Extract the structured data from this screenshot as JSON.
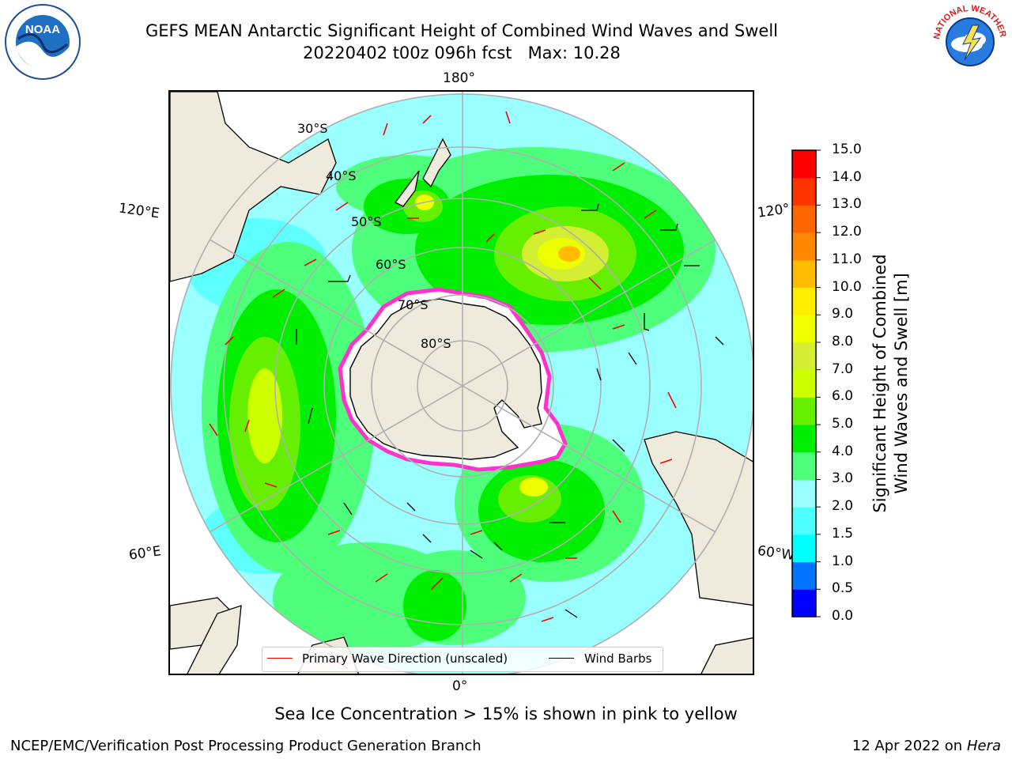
{
  "title": {
    "line1": "GEFS MEAN Antarctic Significant Height of Combined Wind Waves and Swell",
    "line2": "20220402 t00z 096h fcst   Max: 10.28"
  },
  "logos": {
    "noaa_text": "NOAA",
    "nws_text": "NATIONAL WEATHER SERVICE"
  },
  "map": {
    "projection": "south-polar stereographic",
    "longitude_labels": {
      "top": "180°",
      "bottom": "0°",
      "upper_left": "120°E",
      "lower_left": "60°E",
      "upper_right": "120°",
      "lower_right": "60°W"
    },
    "latitude_labels": [
      "30°S",
      "40°S",
      "50°S",
      "60°S",
      "70°S",
      "80°S"
    ],
    "max_value_m": 10.28,
    "colors": {
      "land": "#eeebdc",
      "ice_free_pack": "#ffffff",
      "sea_ice_edge": "#ff33cc",
      "primary_wave_arrow": "#ff0000",
      "wind_barb": "#000000",
      "grid": "#b0b0b0"
    }
  },
  "legend": {
    "wave_direction": "Primary Wave Direction (unscaled)",
    "wind_barbs": "Wind Barbs"
  },
  "colorbar": {
    "label_line1": "Significant Height of Combined",
    "label_line2": "Wind Waves and Swell [m]",
    "ticks": [
      "15.0",
      "14.0",
      "13.0",
      "12.0",
      "11.0",
      "10.0",
      "9.0",
      "8.0",
      "7.0",
      "6.0",
      "5.0",
      "4.0",
      "3.0",
      "2.0",
      "1.5",
      "1.0",
      "0.5",
      "0.0"
    ],
    "bands": [
      {
        "from": 0.0,
        "to": 0.5,
        "color": "#0000ff"
      },
      {
        "from": 0.5,
        "to": 1.0,
        "color": "#0073ff"
      },
      {
        "from": 1.0,
        "to": 1.5,
        "color": "#00ffff"
      },
      {
        "from": 1.5,
        "to": 2.0,
        "color": "#4dffff"
      },
      {
        "from": 2.0,
        "to": 3.0,
        "color": "#99ffff"
      },
      {
        "from": 3.0,
        "to": 4.0,
        "color": "#4dff7a"
      },
      {
        "from": 4.0,
        "to": 5.0,
        "color": "#00ef00"
      },
      {
        "from": 5.0,
        "to": 6.0,
        "color": "#66ef00"
      },
      {
        "from": 6.0,
        "to": 7.0,
        "color": "#ccff00"
      },
      {
        "from": 7.0,
        "to": 8.0,
        "color": "#d4ee33"
      },
      {
        "from": 8.0,
        "to": 9.0,
        "color": "#eeff00"
      },
      {
        "from": 9.0,
        "to": 10.0,
        "color": "#ffee00"
      },
      {
        "from": 10.0,
        "to": 11.0,
        "color": "#ffbb00"
      },
      {
        "from": 11.0,
        "to": 12.0,
        "color": "#ff8800"
      },
      {
        "from": 12.0,
        "to": 13.0,
        "color": "#ff6600"
      },
      {
        "from": 13.0,
        "to": 14.0,
        "color": "#ff3300"
      },
      {
        "from": 14.0,
        "to": 15.0,
        "color": "#ff0000"
      }
    ]
  },
  "footer": {
    "note": "Sea Ice Concentration > 15% is shown in pink to yellow",
    "left": "NCEP/EMC/Verification Post Processing Product Generation Branch",
    "right_date": "12 Apr 2022 on ",
    "right_host": "Hera"
  }
}
